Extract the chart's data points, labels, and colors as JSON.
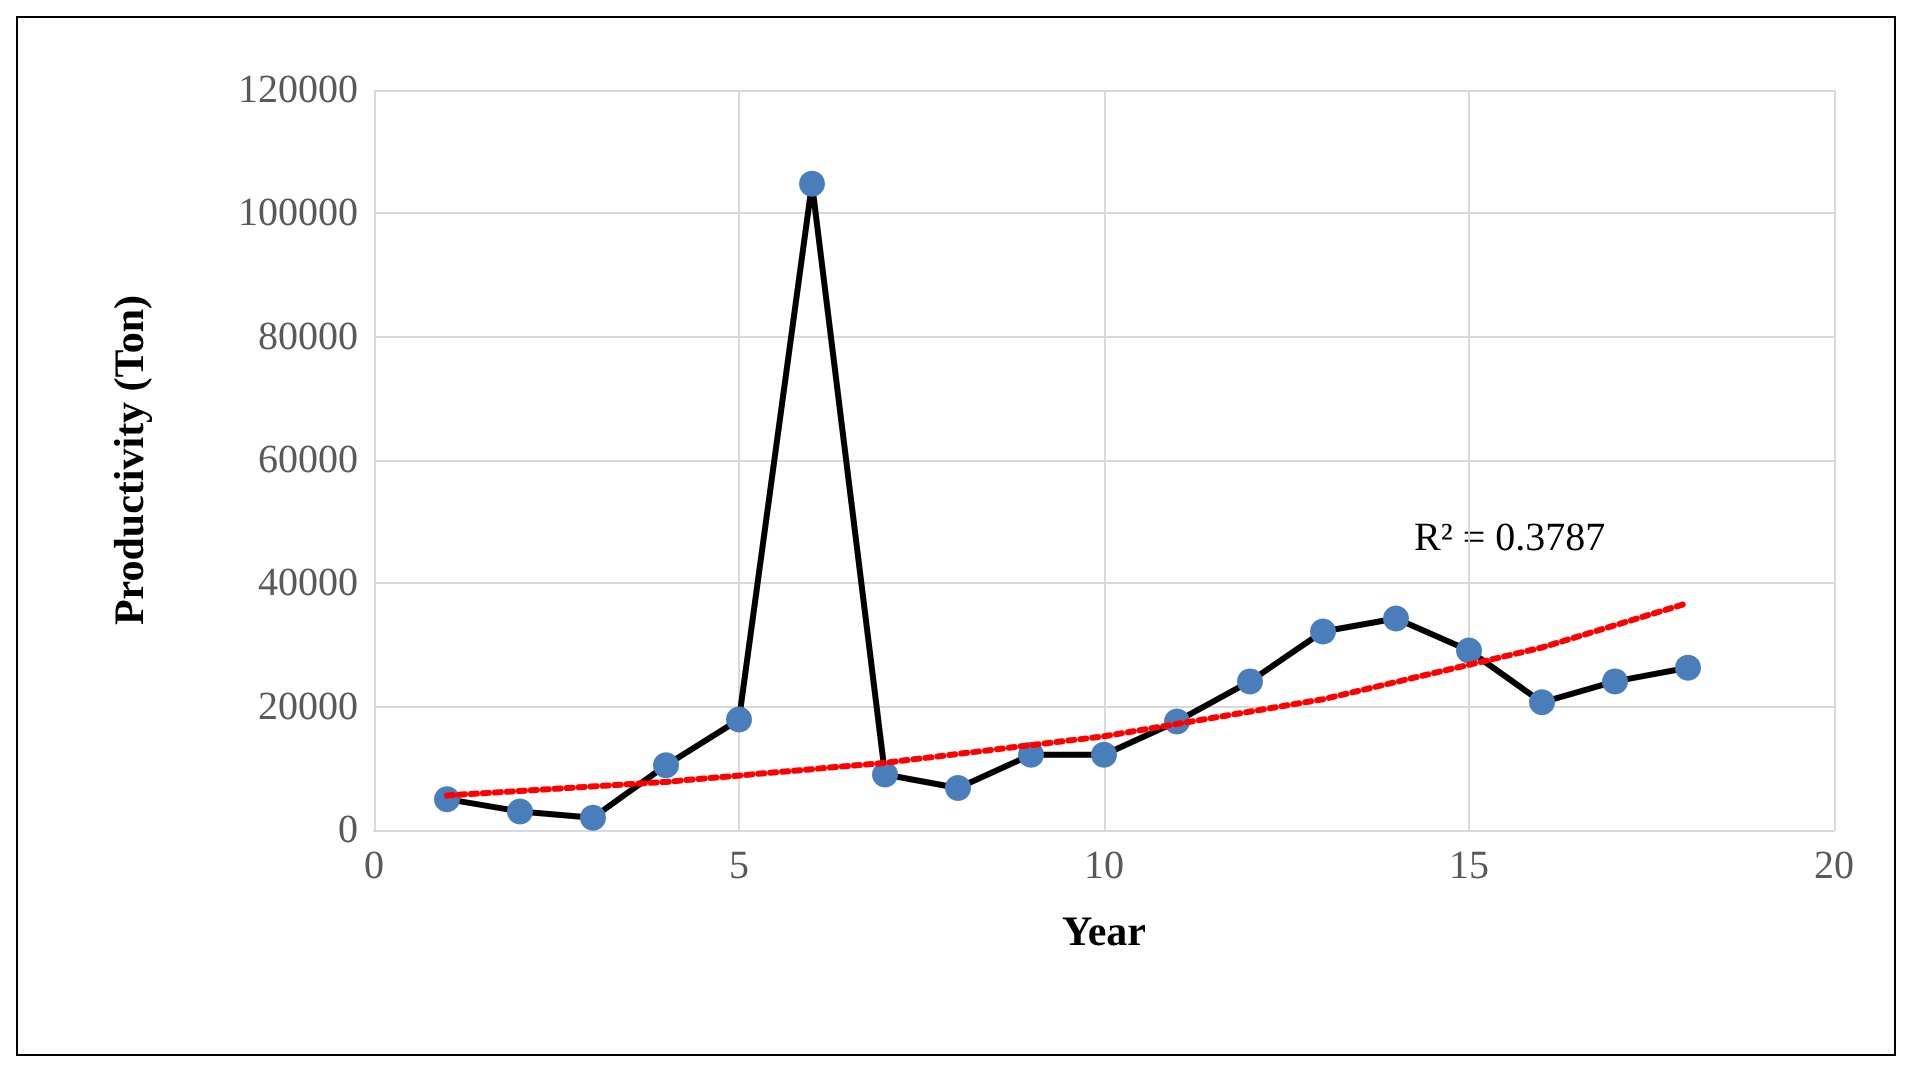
{
  "chart_data": {
    "type": "line",
    "xlabel": "Year",
    "ylabel": "Productivity (Ton)",
    "xlim": [
      0,
      20
    ],
    "xticks": [
      0,
      5,
      10,
      15,
      20
    ],
    "ylim": [
      0,
      120000
    ],
    "yticks": [
      0,
      20000,
      40000,
      60000,
      80000,
      100000,
      120000
    ],
    "grid": true,
    "series": [
      {
        "color": "#4a7ebb",
        "marker": "circle",
        "line_style": "solid",
        "x": [
          1,
          2,
          3,
          4,
          5,
          6,
          7,
          8,
          9,
          10,
          11,
          12,
          13,
          14,
          15,
          16,
          17,
          18
        ],
        "values": [
          5000,
          3000,
          2000,
          10500,
          17900,
          104800,
          9000,
          6800,
          12200,
          12200,
          17600,
          24100,
          32200,
          34300,
          29100,
          20700,
          24100,
          26300
        ]
      },
      {
        "type": "line",
        "color": "#ff0000",
        "marker": "none",
        "line_style": "dotted",
        "x": [
          1,
          4,
          7,
          10,
          13,
          16,
          18
        ],
        "values": [
          5600,
          7800,
          10900,
          15200,
          21200,
          29600,
          36800
        ]
      }
    ],
    "annotations": [
      "R² = 0.3787"
    ]
  }
}
